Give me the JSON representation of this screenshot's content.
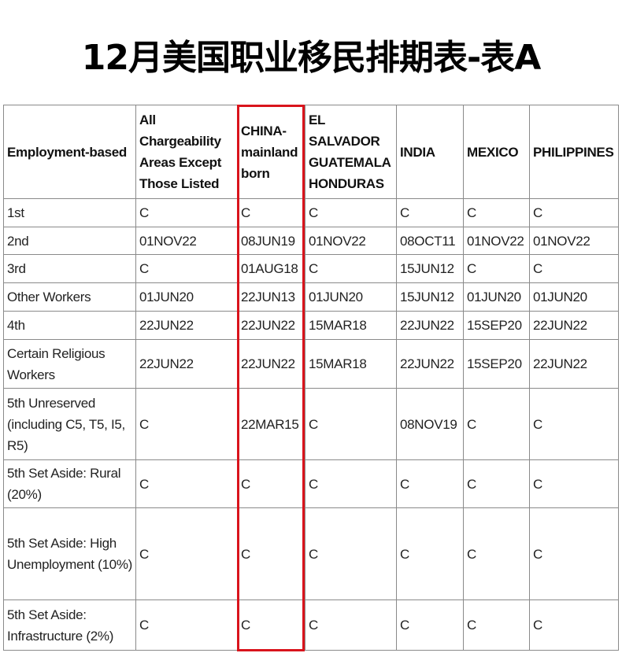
{
  "title": "12月美国职业移民排期表-表A",
  "highlight_color": "#d9141c",
  "table": {
    "headers": [
      "Employment-based",
      "All Chargeability Areas Except Those Listed",
      "CHINA-mainland born",
      "EL SALVADOR GUATEMALA HONDURAS",
      "INDIA",
      "MEXICO",
      "PHILIPPINES"
    ],
    "rows": [
      [
        "1st",
        "C",
        "C",
        "C",
        "C",
        "C",
        "C"
      ],
      [
        "2nd",
        "01NOV22",
        "08JUN19",
        "01NOV22",
        "08OCT11",
        "01NOV22",
        "01NOV22"
      ],
      [
        "3rd",
        "C",
        "01AUG18",
        "C",
        "15JUN12",
        "C",
        "C"
      ],
      [
        "Other Workers",
        "01JUN20",
        "22JUN13",
        "01JUN20",
        "15JUN12",
        "01JUN20",
        "01JUN20"
      ],
      [
        "4th",
        "22JUN22",
        "22JUN22",
        "15MAR18",
        "22JUN22",
        "15SEP20",
        "22JUN22"
      ],
      [
        "Certain Religious Workers",
        "22JUN22",
        "22JUN22",
        "15MAR18",
        "22JUN22",
        "15SEP20",
        "22JUN22"
      ],
      [
        "5th Unreserved (including C5, T5, I5, R5)",
        "C",
        "22MAR15",
        "C",
        "08NOV19",
        "C",
        "C"
      ],
      [
        "5th Set Aside: Rural (20%)",
        "C",
        "C",
        "C",
        "C",
        "C",
        "C"
      ],
      [
        "5th Set Aside: High Unemployment (10%)",
        "C",
        "C",
        "C",
        "C",
        "C",
        "C"
      ],
      [
        "5th Set Aside: Infrastructure (2%)",
        "C",
        "C",
        "C",
        "C",
        "C",
        "C"
      ]
    ]
  }
}
